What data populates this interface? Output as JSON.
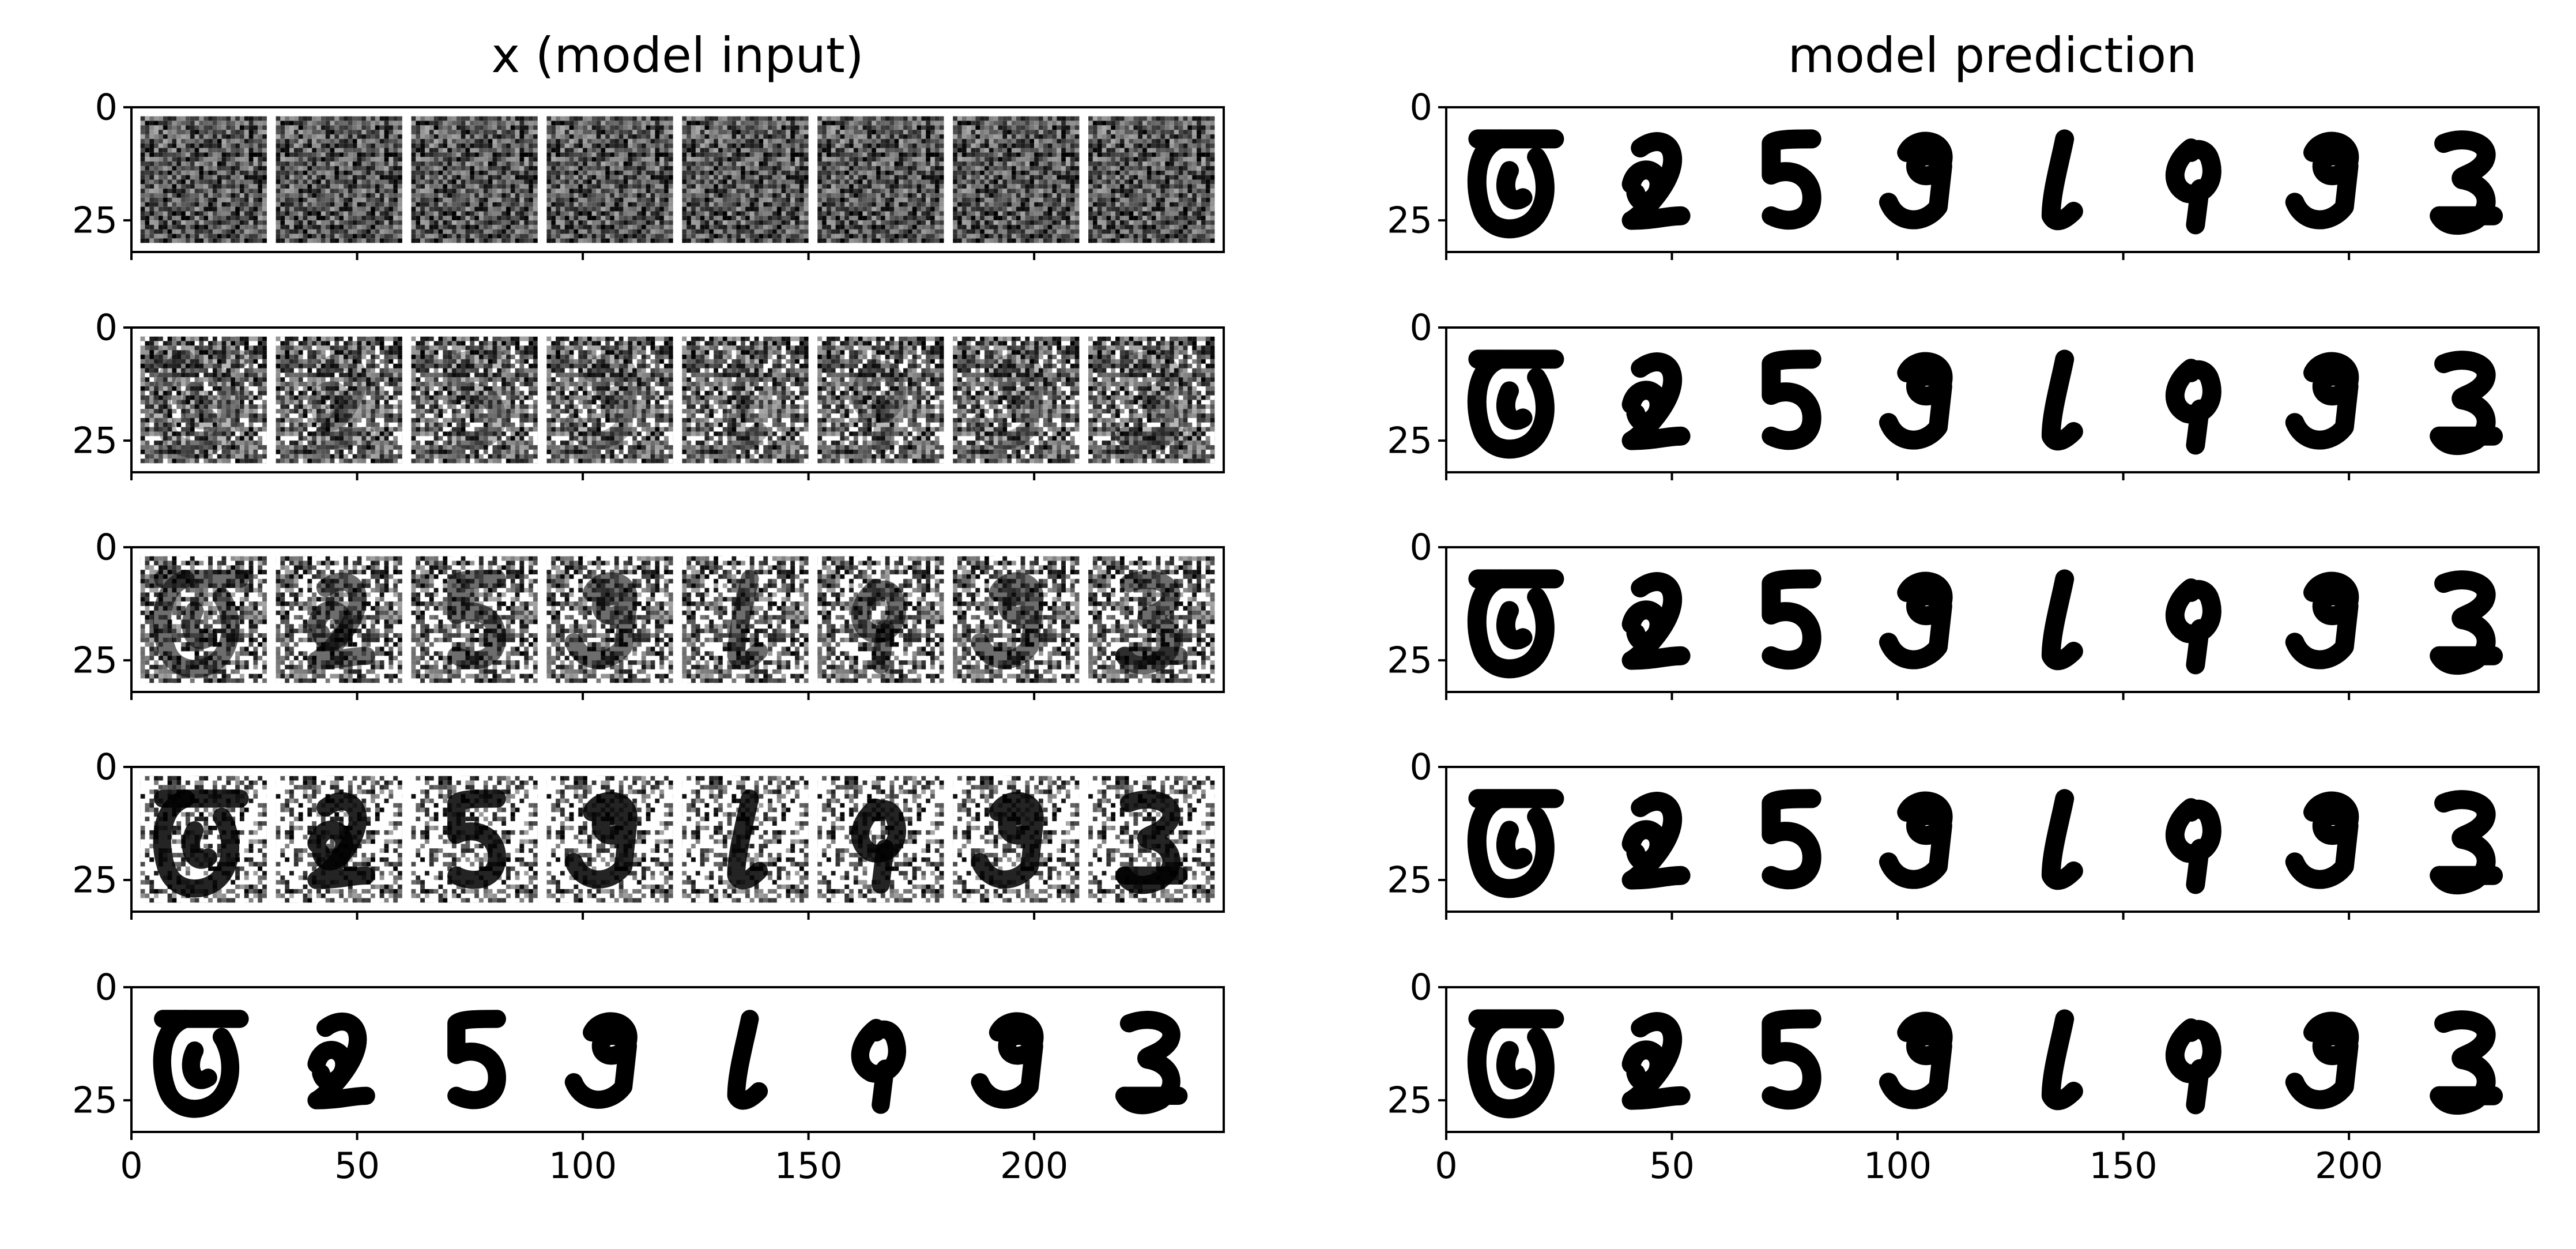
{
  "chart_data": [
    {
      "type": "heatmap",
      "title": "x (model input)",
      "subplot_rows": 5,
      "colormap": "Greys",
      "xlim": [
        0,
        242
      ],
      "ylim": [
        32,
        0
      ],
      "x_ticks": [
        0,
        50,
        100,
        150,
        200
      ],
      "x_tick_labels": [
        "0",
        "50",
        "100",
        "150",
        "200"
      ],
      "y_ticks": [
        0,
        25
      ],
      "y_tick_labels": [
        "0",
        "25"
      ],
      "digits": [
        0,
        2,
        5,
        9,
        1,
        4,
        9,
        3
      ],
      "noise_level_by_row": [
        1.0,
        0.75,
        0.45,
        0.15,
        0.0
      ]
    },
    {
      "type": "heatmap",
      "title": "model prediction",
      "subplot_rows": 5,
      "colormap": "Greys",
      "xlim": [
        0,
        242
      ],
      "ylim": [
        32,
        0
      ],
      "x_ticks": [
        0,
        50,
        100,
        150,
        200
      ],
      "x_tick_labels": [
        "0",
        "50",
        "100",
        "150",
        "200"
      ],
      "y_ticks": [
        0,
        25
      ],
      "y_tick_labels": [
        "0",
        "25"
      ],
      "digits": [
        0,
        2,
        5,
        9,
        1,
        4,
        9,
        3
      ],
      "noise_level_by_row": [
        0.0,
        0.0,
        0.0,
        0.0,
        0.0
      ]
    }
  ]
}
